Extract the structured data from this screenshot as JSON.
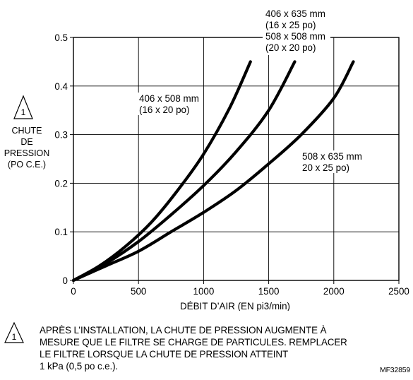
{
  "chart_data": {
    "type": "line",
    "xlabel": "DÉBIT D’AIR (EN pi3/min)",
    "ylabel_lines": [
      "CHUTE",
      "DE",
      "PRESSION",
      "(PO C.E.)"
    ],
    "xlim": [
      0,
      2500
    ],
    "ylim": [
      0,
      0.5
    ],
    "x_ticks": [
      0,
      500,
      1000,
      1500,
      2000,
      2500
    ],
    "y_ticks": [
      0,
      0.1,
      0.2,
      0.3,
      0.4,
      0.5
    ],
    "y_tick_labels": [
      "0",
      "0.1",
      "0.2",
      "0.3",
      "0.4",
      "0.5"
    ],
    "grid": true,
    "warning_marker": "1",
    "series": [
      {
        "name_lines": [
          "406 x 508 mm",
          "(16 x 20 po)"
        ],
        "x": [
          0,
          200,
          400,
          600,
          800,
          1000,
          1200,
          1360
        ],
        "y": [
          0,
          0.03,
          0.07,
          0.12,
          0.185,
          0.26,
          0.355,
          0.45
        ]
      },
      {
        "name_lines": [
          "406 x 635 mm",
          "(16 x 25 po)",
          "508 x 508 mm",
          "(20 x 20 po)"
        ],
        "x": [
          0,
          250,
          500,
          750,
          1000,
          1250,
          1500,
          1700
        ],
        "y": [
          0,
          0.035,
          0.08,
          0.135,
          0.195,
          0.265,
          0.35,
          0.45
        ]
      },
      {
        "name_lines": [
          "508 x 635 mm",
          "20 x 25 po)"
        ],
        "x": [
          0,
          250,
          500,
          750,
          1000,
          1250,
          1500,
          1750,
          2000,
          2150
        ],
        "y": [
          0,
          0.03,
          0.06,
          0.1,
          0.14,
          0.185,
          0.24,
          0.3,
          0.375,
          0.45
        ]
      }
    ]
  },
  "note": {
    "marker": "1",
    "lines": [
      "APRÈS L’INSTALLATION, LA CHUTE DE PRESSION AUGMENTE À",
      "MESURE QUE LE FILTRE SE CHARGE DE PARTICULES. REMPLACER",
      "LE FILTRE LORSQUE LA CHUTE DE PRESSION ATTEINT",
      "1 kPa (0,5 po c.e.)."
    ]
  },
  "figure_ref": "MF32859"
}
